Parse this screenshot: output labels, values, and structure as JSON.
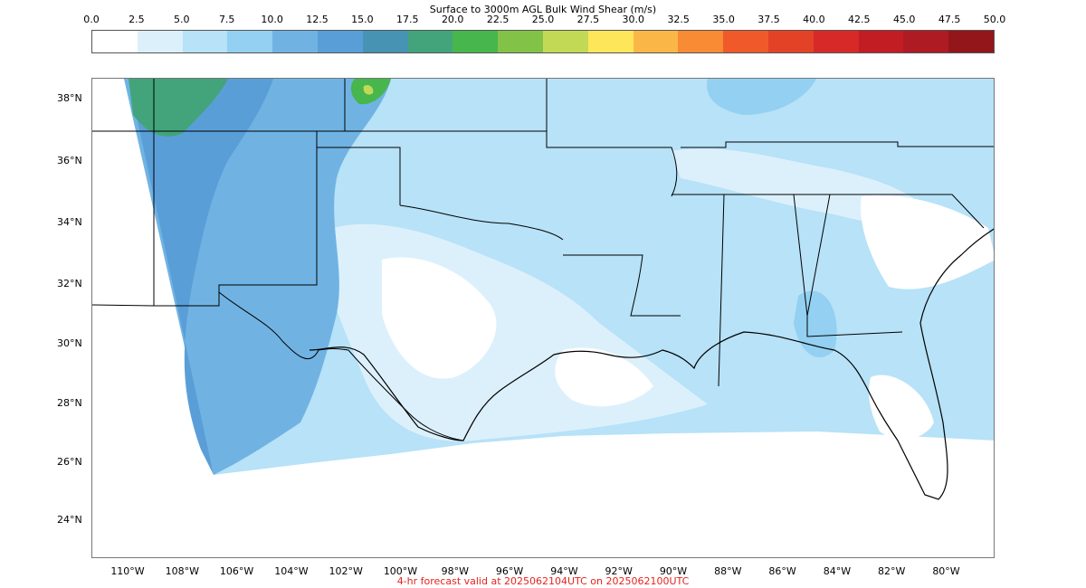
{
  "colorbar": {
    "title": "Surface to 3000m AGL Bulk Wind Shear (m/s)",
    "ticks": [
      "0.0",
      "2.5",
      "5.0",
      "7.5",
      "10.0",
      "12.5",
      "15.0",
      "17.5",
      "20.0",
      "22.5",
      "25.0",
      "27.5",
      "30.0",
      "32.5",
      "35.0",
      "37.5",
      "40.0",
      "42.5",
      "45.0",
      "47.5",
      "50.0"
    ],
    "colors": [
      "#ffffff",
      "#dcf0fc",
      "#b7e2f7",
      "#93d0f1",
      "#70b3e3",
      "#5a9ed8",
      "#4693b4",
      "#43a47c",
      "#46b64d",
      "#82c347",
      "#c2d955",
      "#fde659",
      "#fbb648",
      "#f88b34",
      "#f05a2a",
      "#e44227",
      "#d72a28",
      "#c31d24",
      "#ae1b22",
      "#92161a"
    ]
  },
  "map": {
    "lat_labels": [
      "38°N",
      "36°N",
      "34°N",
      "32°N",
      "30°N",
      "28°N",
      "26°N",
      "24°N"
    ],
    "lon_labels": [
      "110°W",
      "108°W",
      "106°W",
      "104°W",
      "102°W",
      "100°W",
      "98°W",
      "96°W",
      "94°W",
      "92°W",
      "90°W",
      "88°W",
      "86°W",
      "84°W",
      "82°W",
      "80°W"
    ]
  },
  "footer": {
    "text": "4-hr forecast valid at 2025062104UTC on 2025062100UTC",
    "color": "#e8231d"
  }
}
